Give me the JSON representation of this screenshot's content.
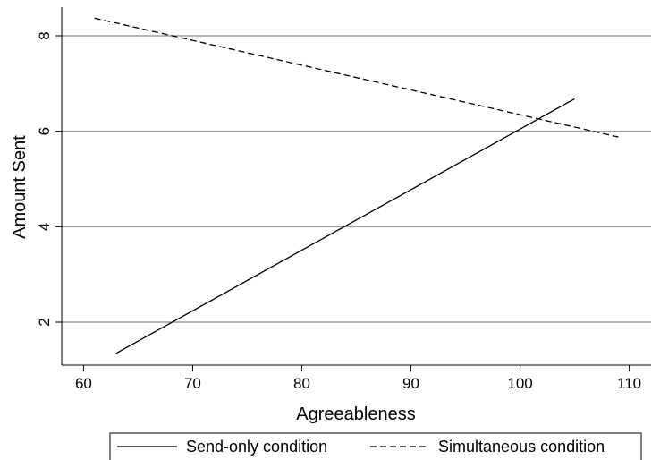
{
  "chart_data": {
    "type": "line",
    "xlabel": "Agreeableness",
    "ylabel": "Amount Sent",
    "xlim": [
      58,
      112
    ],
    "ylim": [
      1.1,
      8.6
    ],
    "x_ticks": [
      60,
      70,
      80,
      90,
      100,
      110
    ],
    "y_ticks": [
      2,
      4,
      6,
      8
    ],
    "grid": "horizontal",
    "legend_position": "bottom",
    "series": [
      {
        "name": "Send-only condition",
        "style": "solid",
        "color": "#000000",
        "x": [
          63,
          105
        ],
        "y": [
          1.35,
          6.68
        ]
      },
      {
        "name": "Simultaneous condition",
        "style": "dashed",
        "color": "#000000",
        "x": [
          61,
          109
        ],
        "y": [
          8.37,
          5.88
        ]
      }
    ]
  }
}
